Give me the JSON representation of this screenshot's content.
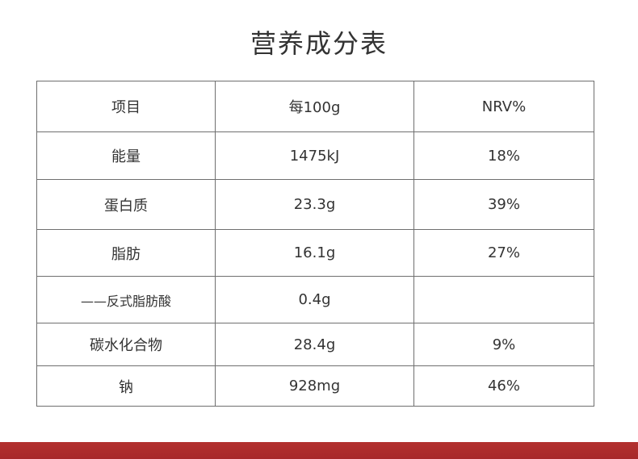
{
  "title": "营养成分表",
  "table": {
    "headers": [
      "项目",
      "每100g",
      "NRV%"
    ],
    "rows": [
      {
        "item": "能量",
        "per100g": "1475kJ",
        "nrv": "18%"
      },
      {
        "item": "蛋白质",
        "per100g": "23.3g",
        "nrv": "39%"
      },
      {
        "item": "脂肪",
        "per100g": "16.1g",
        "nrv": "27%"
      },
      {
        "item": "——反式脂肪酸",
        "per100g": "0.4g",
        "nrv": ""
      },
      {
        "item": "碳水化合物",
        "per100g": "28.4g",
        "nrv": "9%"
      },
      {
        "item": "钠",
        "per100g": "928mg",
        "nrv": "46%"
      }
    ]
  },
  "colors": {
    "text": "#333333",
    "border": "#6f6f6f",
    "band": "#a7282a"
  }
}
